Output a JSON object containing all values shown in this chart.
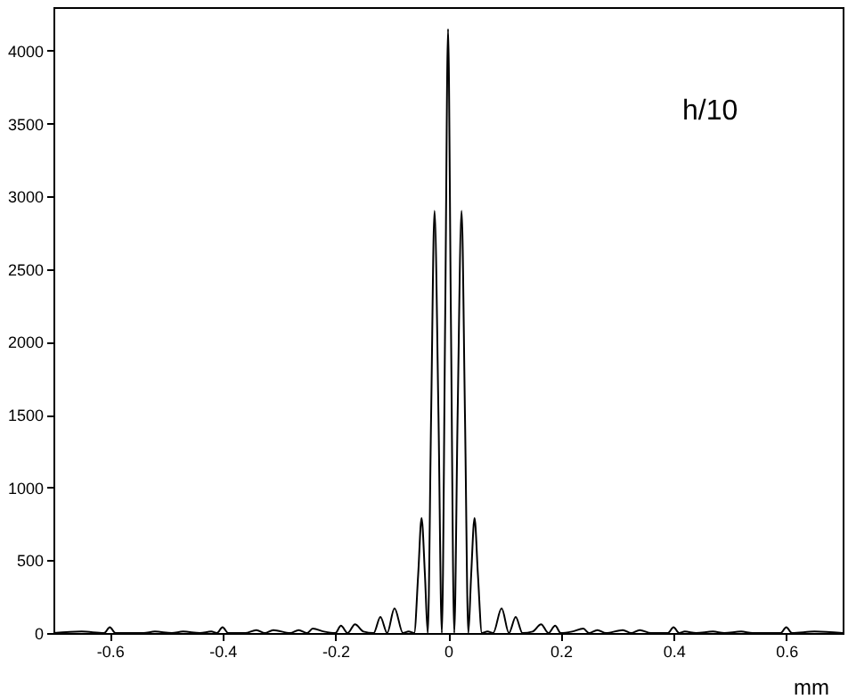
{
  "chart_data": {
    "type": "line",
    "xlabel": "mm",
    "annotations": [
      "h/10"
    ],
    "xlim": [
      -0.7,
      0.7
    ],
    "ylim": [
      0,
      4300
    ],
    "xticks": [
      -0.6,
      -0.4,
      -0.2,
      0,
      0.2,
      0.4,
      0.6
    ],
    "yticks": [
      0,
      500,
      1000,
      1500,
      2000,
      2500,
      3000,
      3500,
      4000
    ],
    "grid": false,
    "marker": "none",
    "line_style": "solid",
    "series": [
      {
        "color": "#000000",
        "x": [
          -0.7,
          -0.65,
          -0.61,
          -0.6,
          -0.59,
          -0.54,
          -0.52,
          -0.49,
          -0.47,
          -0.44,
          -0.42,
          -0.41,
          -0.4,
          -0.39,
          -0.36,
          -0.34,
          -0.325,
          -0.31,
          -0.28,
          -0.265,
          -0.25,
          -0.24,
          -0.22,
          -0.2,
          -0.19,
          -0.178,
          -0.165,
          -0.15,
          -0.132,
          -0.12,
          -0.108,
          -0.095,
          -0.08,
          -0.07,
          -0.06,
          -0.053,
          -0.047,
          -0.041,
          -0.036,
          -0.03,
          -0.024,
          -0.017,
          -0.011,
          -0.005,
          0,
          0.005,
          0.011,
          0.017,
          0.024,
          0.03,
          0.036,
          0.041,
          0.047,
          0.053,
          0.06,
          0.07,
          0.08,
          0.095,
          0.108,
          0.12,
          0.132,
          0.15,
          0.165,
          0.178,
          0.19,
          0.2,
          0.22,
          0.24,
          0.25,
          0.265,
          0.28,
          0.31,
          0.325,
          0.34,
          0.36,
          0.39,
          0.4,
          0.41,
          0.42,
          0.44,
          0.47,
          0.49,
          0.52,
          0.54,
          0.59,
          0.6,
          0.61,
          0.65,
          0.7
        ],
        "values": [
          0,
          10,
          0,
          40,
          0,
          0,
          10,
          0,
          10,
          0,
          10,
          0,
          40,
          0,
          0,
          20,
          0,
          20,
          0,
          20,
          0,
          30,
          10,
          0,
          50,
          0,
          60,
          10,
          0,
          110,
          0,
          170,
          0,
          10,
          0,
          400,
          790,
          400,
          0,
          1500,
          2900,
          1500,
          0,
          2200,
          4150,
          2200,
          0,
          1500,
          2900,
          1500,
          0,
          400,
          790,
          400,
          0,
          10,
          0,
          170,
          0,
          110,
          0,
          10,
          60,
          0,
          50,
          0,
          10,
          30,
          0,
          20,
          0,
          20,
          0,
          20,
          0,
          0,
          40,
          0,
          10,
          0,
          10,
          0,
          10,
          0,
          0,
          40,
          0,
          10,
          0
        ]
      }
    ]
  }
}
